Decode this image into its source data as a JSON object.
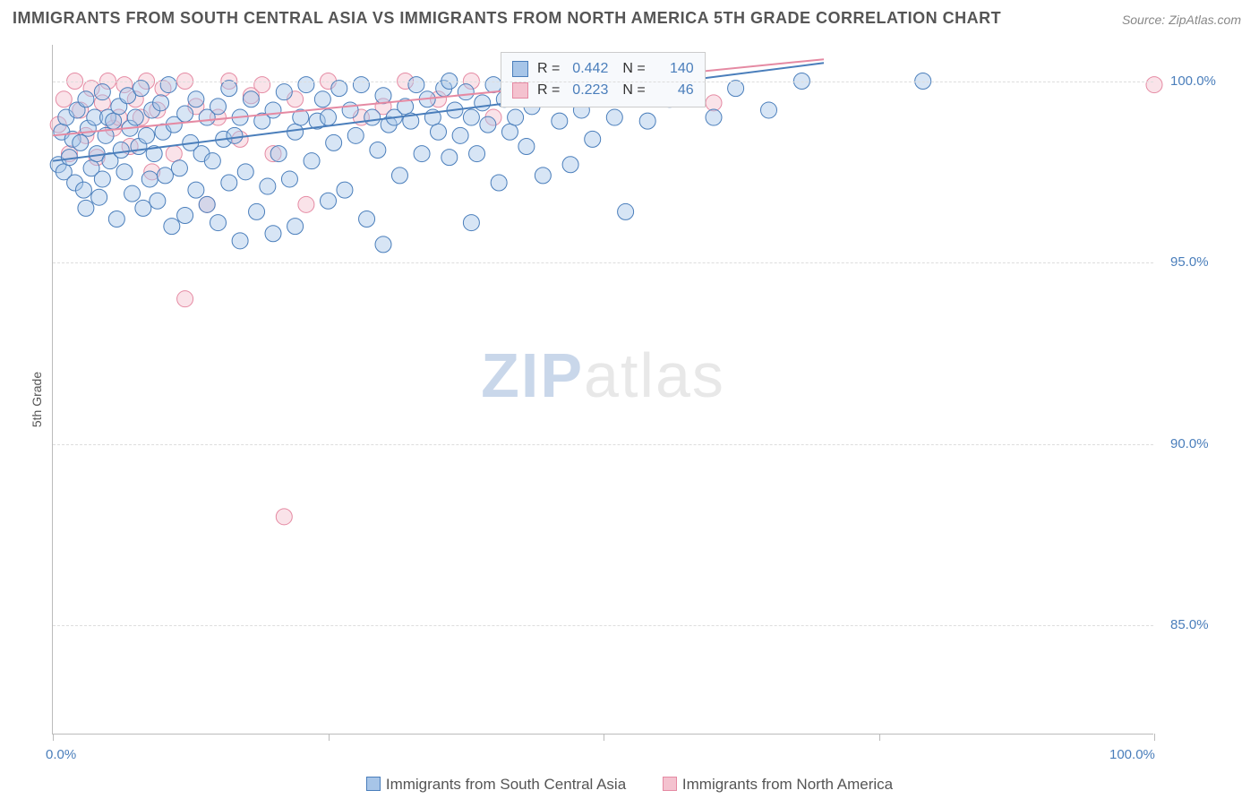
{
  "title": "IMMIGRANTS FROM SOUTH CENTRAL ASIA VS IMMIGRANTS FROM NORTH AMERICA 5TH GRADE CORRELATION CHART",
  "source": "Source: ZipAtlas.com",
  "ylabel": "5th Grade",
  "watermark": {
    "part1": "ZIP",
    "part2": "atlas"
  },
  "chart": {
    "type": "scatter",
    "xlim": [
      0,
      100
    ],
    "ylim": [
      82,
      101
    ],
    "yticks": [
      {
        "value": 100,
        "label": "100.0%"
      },
      {
        "value": 95,
        "label": "95.0%"
      },
      {
        "value": 90,
        "label": "90.0%"
      },
      {
        "value": 85,
        "label": "85.0%"
      }
    ],
    "xticks": [
      {
        "value": 0,
        "label": "0.0%"
      },
      {
        "value": 50,
        "label": ""
      },
      {
        "value": 100,
        "label": "100.0%"
      }
    ],
    "xtick_minor": [
      25,
      75
    ],
    "background_color": "#ffffff",
    "grid_color": "#dddddd",
    "marker_radius": 9,
    "marker_opacity": 0.45,
    "line_width": 2,
    "series": [
      {
        "name": "Immigrants from South Central Asia",
        "color_fill": "#a7c5e8",
        "color_stroke": "#4a7ebb",
        "r": 0.442,
        "n": 140,
        "trend": {
          "x1": 0,
          "y1": 97.8,
          "x2": 70,
          "y2": 100.5
        },
        "points": [
          [
            0.5,
            97.7
          ],
          [
            0.8,
            98.6
          ],
          [
            1.0,
            97.5
          ],
          [
            1.2,
            99.0
          ],
          [
            1.5,
            97.9
          ],
          [
            1.8,
            98.4
          ],
          [
            2.0,
            97.2
          ],
          [
            2.2,
            99.2
          ],
          [
            2.5,
            98.3
          ],
          [
            2.8,
            97.0
          ],
          [
            3.0,
            99.5
          ],
          [
            3.0,
            96.5
          ],
          [
            3.2,
            98.7
          ],
          [
            3.5,
            97.6
          ],
          [
            3.8,
            99.0
          ],
          [
            4.0,
            98.0
          ],
          [
            4.2,
            96.8
          ],
          [
            4.5,
            99.7
          ],
          [
            4.5,
            97.3
          ],
          [
            4.8,
            98.5
          ],
          [
            5.0,
            99.0
          ],
          [
            5.2,
            97.8
          ],
          [
            5.5,
            98.9
          ],
          [
            5.8,
            96.2
          ],
          [
            6.0,
            99.3
          ],
          [
            6.2,
            98.1
          ],
          [
            6.5,
            97.5
          ],
          [
            6.8,
            99.6
          ],
          [
            7.0,
            98.7
          ],
          [
            7.2,
            96.9
          ],
          [
            7.5,
            99.0
          ],
          [
            7.8,
            98.2
          ],
          [
            8.0,
            99.8
          ],
          [
            8.2,
            96.5
          ],
          [
            8.5,
            98.5
          ],
          [
            8.8,
            97.3
          ],
          [
            9.0,
            99.2
          ],
          [
            9.2,
            98.0
          ],
          [
            9.5,
            96.7
          ],
          [
            9.8,
            99.4
          ],
          [
            10.0,
            98.6
          ],
          [
            10.2,
            97.4
          ],
          [
            10.5,
            99.9
          ],
          [
            10.8,
            96.0
          ],
          [
            11.0,
            98.8
          ],
          [
            11.5,
            97.6
          ],
          [
            12.0,
            99.1
          ],
          [
            12.0,
            96.3
          ],
          [
            12.5,
            98.3
          ],
          [
            13.0,
            97.0
          ],
          [
            13.0,
            99.5
          ],
          [
            13.5,
            98.0
          ],
          [
            14.0,
            96.6
          ],
          [
            14.0,
            99.0
          ],
          [
            14.5,
            97.8
          ],
          [
            15.0,
            99.3
          ],
          [
            15.0,
            96.1
          ],
          [
            15.5,
            98.4
          ],
          [
            16.0,
            99.8
          ],
          [
            16.0,
            97.2
          ],
          [
            16.5,
            98.5
          ],
          [
            17.0,
            95.6
          ],
          [
            17.0,
            99.0
          ],
          [
            17.5,
            97.5
          ],
          [
            18.0,
            99.5
          ],
          [
            18.5,
            96.4
          ],
          [
            19.0,
            98.9
          ],
          [
            19.5,
            97.1
          ],
          [
            20.0,
            99.2
          ],
          [
            20.0,
            95.8
          ],
          [
            20.5,
            98.0
          ],
          [
            21.0,
            99.7
          ],
          [
            21.5,
            97.3
          ],
          [
            22.0,
            98.6
          ],
          [
            22.0,
            96.0
          ],
          [
            22.5,
            99.0
          ],
          [
            23.0,
            99.9
          ],
          [
            23.5,
            97.8
          ],
          [
            24.0,
            98.9
          ],
          [
            24.5,
            99.5
          ],
          [
            25.0,
            96.7
          ],
          [
            25.0,
            99.0
          ],
          [
            25.5,
            98.3
          ],
          [
            26.0,
            99.8
          ],
          [
            26.5,
            97.0
          ],
          [
            27.0,
            99.2
          ],
          [
            27.5,
            98.5
          ],
          [
            28.0,
            99.9
          ],
          [
            28.5,
            96.2
          ],
          [
            29.0,
            99.0
          ],
          [
            29.5,
            98.1
          ],
          [
            30.0,
            99.6
          ],
          [
            30.0,
            95.5
          ],
          [
            30.5,
            98.8
          ],
          [
            31.0,
            99.0
          ],
          [
            31.5,
            97.4
          ],
          [
            32.0,
            99.3
          ],
          [
            32.5,
            98.9
          ],
          [
            33.0,
            99.9
          ],
          [
            33.5,
            98.0
          ],
          [
            34.0,
            99.5
          ],
          [
            34.5,
            99.0
          ],
          [
            35.0,
            98.6
          ],
          [
            35.5,
            99.8
          ],
          [
            36.0,
            97.9
          ],
          [
            36.0,
            100.0
          ],
          [
            36.5,
            99.2
          ],
          [
            37.0,
            98.5
          ],
          [
            37.5,
            99.7
          ],
          [
            38.0,
            99.0
          ],
          [
            38.0,
            96.1
          ],
          [
            38.5,
            98.0
          ],
          [
            39.0,
            99.4
          ],
          [
            39.5,
            98.8
          ],
          [
            40.0,
            99.9
          ],
          [
            40.5,
            97.2
          ],
          [
            41.0,
            99.5
          ],
          [
            41.5,
            98.6
          ],
          [
            42.0,
            99.0
          ],
          [
            42.5,
            99.8
          ],
          [
            43.0,
            98.2
          ],
          [
            43.5,
            99.3
          ],
          [
            44.0,
            100.0
          ],
          [
            44.5,
            97.4
          ],
          [
            45.0,
            99.6
          ],
          [
            46.0,
            98.9
          ],
          [
            47.0,
            97.7
          ],
          [
            48.0,
            99.2
          ],
          [
            49.0,
            98.4
          ],
          [
            50.0,
            99.8
          ],
          [
            51.0,
            99.0
          ],
          [
            52.0,
            96.4
          ],
          [
            54.0,
            98.9
          ],
          [
            56.0,
            99.5
          ],
          [
            58.0,
            100.0
          ],
          [
            60.0,
            99.0
          ],
          [
            62.0,
            99.8
          ],
          [
            65.0,
            99.2
          ],
          [
            68.0,
            100.0
          ],
          [
            79.0,
            100.0
          ]
        ]
      },
      {
        "name": "Immigrants from North America",
        "color_fill": "#f4c2cf",
        "color_stroke": "#e58aa3",
        "r": 0.223,
        "n": 46,
        "trend": {
          "x1": 0,
          "y1": 98.5,
          "x2": 70,
          "y2": 100.6
        },
        "points": [
          [
            0.5,
            98.8
          ],
          [
            1.0,
            99.5
          ],
          [
            1.5,
            98.0
          ],
          [
            2.0,
            100.0
          ],
          [
            2.5,
            99.2
          ],
          [
            3.0,
            98.5
          ],
          [
            3.5,
            99.8
          ],
          [
            4.0,
            97.9
          ],
          [
            4.5,
            99.4
          ],
          [
            5.0,
            100.0
          ],
          [
            5.5,
            98.7
          ],
          [
            6.0,
            99.0
          ],
          [
            6.5,
            99.9
          ],
          [
            7.0,
            98.2
          ],
          [
            7.5,
            99.5
          ],
          [
            8.0,
            99.0
          ],
          [
            8.5,
            100.0
          ],
          [
            9.0,
            97.5
          ],
          [
            9.5,
            99.2
          ],
          [
            10.0,
            99.8
          ],
          [
            11.0,
            98.0
          ],
          [
            12.0,
            100.0
          ],
          [
            12.0,
            94.0
          ],
          [
            13.0,
            99.3
          ],
          [
            14.0,
            96.6
          ],
          [
            15.0,
            99.0
          ],
          [
            16.0,
            100.0
          ],
          [
            17.0,
            98.4
          ],
          [
            18.0,
            99.6
          ],
          [
            19.0,
            99.9
          ],
          [
            20.0,
            98.0
          ],
          [
            22.0,
            99.5
          ],
          [
            23.0,
            96.6
          ],
          [
            25.0,
            100.0
          ],
          [
            28.0,
            99.0
          ],
          [
            30.0,
            99.3
          ],
          [
            32.0,
            100.0
          ],
          [
            35.0,
            99.5
          ],
          [
            38.0,
            100.0
          ],
          [
            40.0,
            99.0
          ],
          [
            45.0,
            100.0
          ],
          [
            50.0,
            99.9
          ],
          [
            55.0,
            100.0
          ],
          [
            60.0,
            99.4
          ],
          [
            21.0,
            88.0
          ],
          [
            100.0,
            99.9
          ]
        ]
      }
    ],
    "r_legend": {
      "r_label": "R =",
      "n_label": "N ="
    },
    "bottom_legend": {
      "item1": "Immigrants from South Central Asia",
      "item2": "Immigrants from North America"
    }
  }
}
